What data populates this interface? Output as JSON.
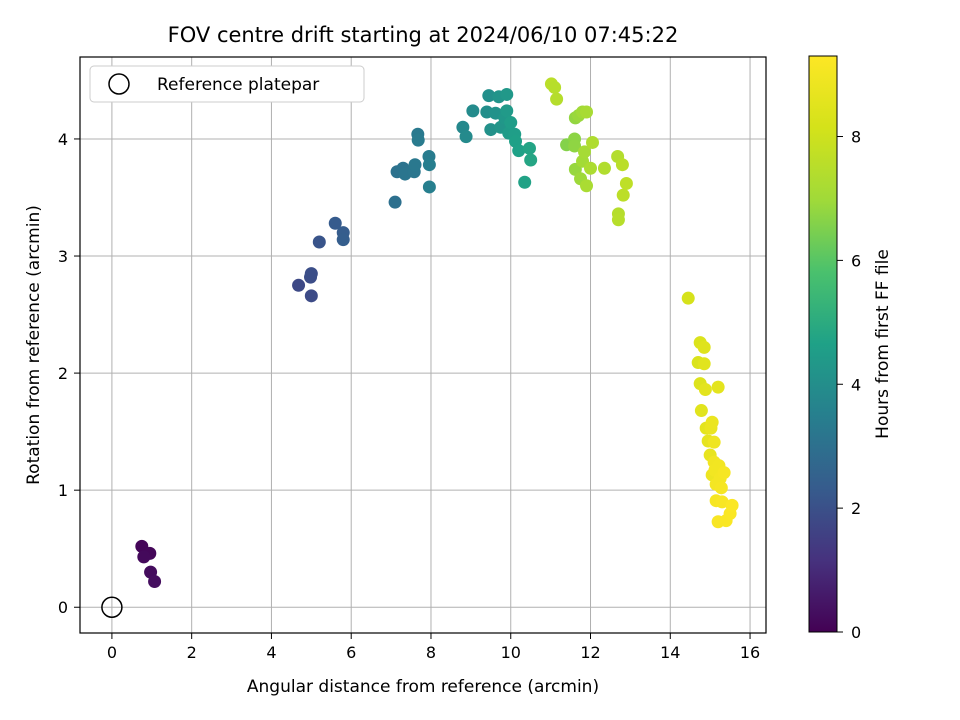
{
  "chart_data": {
    "type": "scatter",
    "title": "FOV centre drift starting at 2024/06/10 07:45:22",
    "xlabel": "Angular distance from reference (arcmin)",
    "ylabel": "Rotation from reference (arcmin)",
    "xlim": [
      -0.8,
      16.4
    ],
    "ylim": [
      -0.22,
      4.7
    ],
    "xticks": [
      "0",
      "2",
      "4",
      "6",
      "8",
      "10",
      "12",
      "14",
      "16"
    ],
    "yticks": [
      "0",
      "1",
      "2",
      "3",
      "4"
    ],
    "grid": true,
    "legend": {
      "position": "top-left",
      "entries": [
        "Reference platepar"
      ]
    },
    "colorbar": {
      "label": "Hours from first FF file",
      "range": [
        0,
        9.3
      ],
      "ticks": [
        "0",
        "2",
        "4",
        "6",
        "8"
      ],
      "colormap": "viridis"
    },
    "reference_point": {
      "x": 0,
      "y": 0,
      "label": "Reference platepar"
    },
    "points": [
      {
        "x": 0.75,
        "y": 0.52,
        "c": 0.1
      },
      {
        "x": 0.95,
        "y": 0.46,
        "c": 0.15
      },
      {
        "x": 0.8,
        "y": 0.43,
        "c": 0.2
      },
      {
        "x": 0.97,
        "y": 0.3,
        "c": 0.25
      },
      {
        "x": 1.07,
        "y": 0.22,
        "c": 0.3
      },
      {
        "x": 4.68,
        "y": 2.75,
        "c": 1.8
      },
      {
        "x": 4.98,
        "y": 2.82,
        "c": 1.9
      },
      {
        "x": 5.0,
        "y": 2.85,
        "c": 1.95
      },
      {
        "x": 5.0,
        "y": 2.66,
        "c": 1.85
      },
      {
        "x": 5.2,
        "y": 3.12,
        "c": 2.1
      },
      {
        "x": 5.6,
        "y": 3.28,
        "c": 2.3
      },
      {
        "x": 5.8,
        "y": 3.2,
        "c": 2.35
      },
      {
        "x": 5.8,
        "y": 3.14,
        "c": 2.4
      },
      {
        "x": 7.1,
        "y": 3.46,
        "c": 3.0
      },
      {
        "x": 7.15,
        "y": 3.72,
        "c": 3.05
      },
      {
        "x": 7.3,
        "y": 3.75,
        "c": 3.1
      },
      {
        "x": 7.35,
        "y": 3.7,
        "c": 3.15
      },
      {
        "x": 7.58,
        "y": 3.72,
        "c": 3.2
      },
      {
        "x": 7.6,
        "y": 3.78,
        "c": 3.25
      },
      {
        "x": 7.67,
        "y": 4.04,
        "c": 3.3
      },
      {
        "x": 7.68,
        "y": 3.99,
        "c": 3.35
      },
      {
        "x": 7.95,
        "y": 3.85,
        "c": 3.4
      },
      {
        "x": 7.96,
        "y": 3.78,
        "c": 3.45
      },
      {
        "x": 7.96,
        "y": 3.59,
        "c": 3.5
      },
      {
        "x": 8.8,
        "y": 4.1,
        "c": 3.8
      },
      {
        "x": 8.88,
        "y": 4.02,
        "c": 3.85
      },
      {
        "x": 9.05,
        "y": 4.24,
        "c": 3.9
      },
      {
        "x": 9.4,
        "y": 4.23,
        "c": 4.0
      },
      {
        "x": 9.45,
        "y": 4.37,
        "c": 4.05
      },
      {
        "x": 9.5,
        "y": 4.08,
        "c": 4.1
      },
      {
        "x": 9.62,
        "y": 4.22,
        "c": 4.15
      },
      {
        "x": 9.7,
        "y": 4.36,
        "c": 4.2
      },
      {
        "x": 9.75,
        "y": 4.1,
        "c": 4.25
      },
      {
        "x": 9.85,
        "y": 4.18,
        "c": 4.3
      },
      {
        "x": 9.9,
        "y": 4.38,
        "c": 4.35
      },
      {
        "x": 9.9,
        "y": 4.24,
        "c": 4.4
      },
      {
        "x": 9.95,
        "y": 4.05,
        "c": 4.45
      },
      {
        "x": 10.0,
        "y": 4.14,
        "c": 4.5
      },
      {
        "x": 10.1,
        "y": 4.04,
        "c": 4.55
      },
      {
        "x": 10.12,
        "y": 3.98,
        "c": 4.6
      },
      {
        "x": 10.2,
        "y": 3.9,
        "c": 4.65
      },
      {
        "x": 10.35,
        "y": 3.63,
        "c": 4.7
      },
      {
        "x": 10.47,
        "y": 3.92,
        "c": 4.75
      },
      {
        "x": 10.5,
        "y": 3.82,
        "c": 4.8
      },
      {
        "x": 11.02,
        "y": 4.47,
        "c": 7.55
      },
      {
        "x": 11.1,
        "y": 4.44,
        "c": 7.5
      },
      {
        "x": 11.15,
        "y": 4.34,
        "c": 7.45
      },
      {
        "x": 11.4,
        "y": 3.95,
        "c": 6.6
      },
      {
        "x": 11.6,
        "y": 4.0,
        "c": 6.7
      },
      {
        "x": 11.6,
        "y": 3.94,
        "c": 6.75
      },
      {
        "x": 11.62,
        "y": 4.18,
        "c": 6.8
      },
      {
        "x": 11.62,
        "y": 3.74,
        "c": 6.85
      },
      {
        "x": 11.7,
        "y": 4.2,
        "c": 6.9
      },
      {
        "x": 11.75,
        "y": 3.66,
        "c": 6.95
      },
      {
        "x": 11.8,
        "y": 4.23,
        "c": 7.0
      },
      {
        "x": 11.8,
        "y": 3.81,
        "c": 7.05
      },
      {
        "x": 11.85,
        "y": 3.89,
        "c": 7.1
      },
      {
        "x": 11.9,
        "y": 4.23,
        "c": 7.15
      },
      {
        "x": 11.9,
        "y": 3.6,
        "c": 7.2
      },
      {
        "x": 12.0,
        "y": 3.75,
        "c": 7.25
      },
      {
        "x": 12.05,
        "y": 3.97,
        "c": 7.3
      },
      {
        "x": 12.35,
        "y": 3.75,
        "c": 7.35
      },
      {
        "x": 12.68,
        "y": 3.85,
        "c": 7.4
      },
      {
        "x": 12.7,
        "y": 3.36,
        "c": 7.45
      },
      {
        "x": 12.7,
        "y": 3.31,
        "c": 7.5
      },
      {
        "x": 12.8,
        "y": 3.78,
        "c": 7.55
      },
      {
        "x": 12.82,
        "y": 3.52,
        "c": 7.6
      },
      {
        "x": 12.9,
        "y": 3.62,
        "c": 7.65
      },
      {
        "x": 14.45,
        "y": 2.64,
        "c": 8.2
      },
      {
        "x": 14.7,
        "y": 2.09,
        "c": 8.3
      },
      {
        "x": 14.75,
        "y": 2.26,
        "c": 8.35
      },
      {
        "x": 14.75,
        "y": 1.91,
        "c": 8.4
      },
      {
        "x": 14.78,
        "y": 1.68,
        "c": 8.5
      },
      {
        "x": 14.85,
        "y": 2.22,
        "c": 8.45
      },
      {
        "x": 14.85,
        "y": 2.08,
        "c": 8.5
      },
      {
        "x": 14.88,
        "y": 1.86,
        "c": 8.55
      },
      {
        "x": 14.9,
        "y": 1.53,
        "c": 8.6
      },
      {
        "x": 14.95,
        "y": 1.42,
        "c": 8.65
      },
      {
        "x": 15.0,
        "y": 1.3,
        "c": 8.7
      },
      {
        "x": 15.02,
        "y": 1.53,
        "c": 8.75
      },
      {
        "x": 15.05,
        "y": 1.58,
        "c": 8.8
      },
      {
        "x": 15.05,
        "y": 1.13,
        "c": 8.85
      },
      {
        "x": 15.1,
        "y": 1.41,
        "c": 8.9
      },
      {
        "x": 15.1,
        "y": 1.24,
        "c": 8.95
      },
      {
        "x": 15.12,
        "y": 1.17,
        "c": 9.0
      },
      {
        "x": 15.15,
        "y": 1.05,
        "c": 9.05
      },
      {
        "x": 15.15,
        "y": 0.91,
        "c": 9.1
      },
      {
        "x": 15.2,
        "y": 1.88,
        "c": 8.6
      },
      {
        "x": 15.2,
        "y": 0.73,
        "c": 9.15
      },
      {
        "x": 15.22,
        "y": 1.21,
        "c": 9.0
      },
      {
        "x": 15.25,
        "y": 1.1,
        "c": 9.05
      },
      {
        "x": 15.28,
        "y": 1.02,
        "c": 9.1
      },
      {
        "x": 15.3,
        "y": 0.9,
        "c": 9.15
      },
      {
        "x": 15.35,
        "y": 1.15,
        "c": 9.1
      },
      {
        "x": 15.4,
        "y": 0.74,
        "c": 9.2
      },
      {
        "x": 15.5,
        "y": 0.8,
        "c": 9.22
      },
      {
        "x": 15.55,
        "y": 0.87,
        "c": 9.25
      }
    ]
  }
}
